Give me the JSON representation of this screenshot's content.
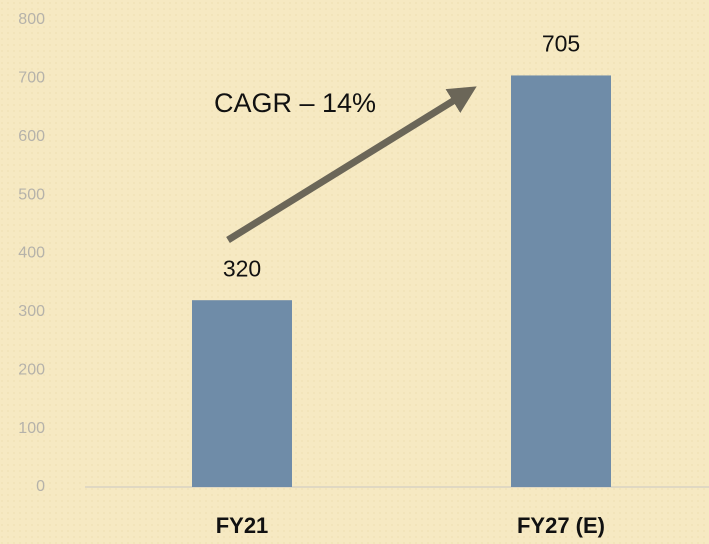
{
  "chart_data": {
    "type": "bar",
    "categories": [
      "FY21",
      "FY27 (E)"
    ],
    "values": [
      320,
      705
    ],
    "color": "#6f8ca8",
    "ylim": [
      0,
      800
    ],
    "yticks": [
      0,
      100,
      200,
      300,
      400,
      500,
      600,
      700,
      800
    ],
    "annotation": "CAGR – 14%"
  }
}
